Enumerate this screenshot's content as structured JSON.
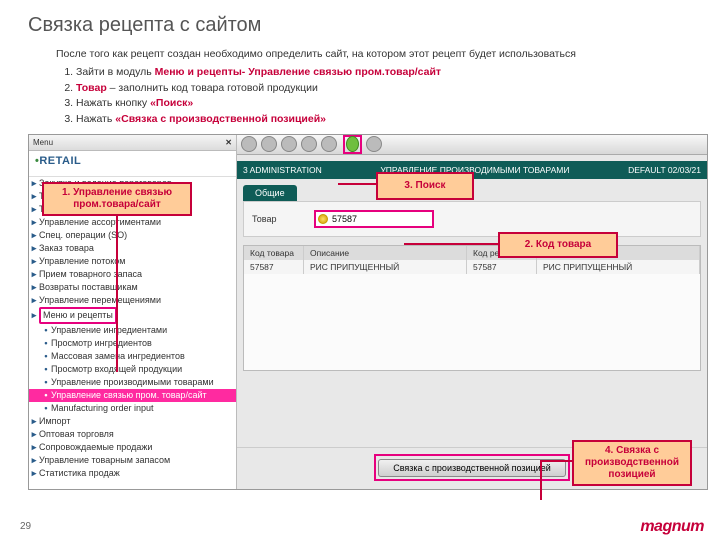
{
  "slide": {
    "title": "Связка рецепта с сайтом",
    "intro": "После того как рецепт создан необходимо определить сайт, на котором этот рецепт будет использоваться",
    "steps": [
      {
        "pre": "Зайти в модуль ",
        "bold": "Меню и рецепты- Управление связью пром.товар/сайт",
        "post": ""
      },
      {
        "pre": "",
        "bold": "Товар",
        "post": " – заполнить код товара готовой продукции"
      },
      {
        "pre": "Нажать кнопку ",
        "bold": "«Поиск»",
        "post": ""
      },
      {
        "pre": "Нажать ",
        "bold": "«Связка с производственной позицией»",
        "post": ""
      }
    ],
    "page_num": "29",
    "brand": "magnum"
  },
  "app": {
    "menu_label": "Menu",
    "retail_logo": "RETAIL",
    "tree": [
      {
        "label": "Закупка и ведение переговоров",
        "lvl": 1
      },
      {
        "label": "Товары",
        "lvl": 1
      },
      {
        "label": "Товарные ценники",
        "lvl": 1
      },
      {
        "label": "Управление ассортиментами",
        "lvl": 1
      },
      {
        "label": "Спец. операции (SO)",
        "lvl": 1
      },
      {
        "label": "Заказ товара",
        "lvl": 1
      },
      {
        "label": "Управление потоком",
        "lvl": 1
      },
      {
        "label": "Прием товарного запаса",
        "lvl": 1
      },
      {
        "label": "Возвраты поставщикам",
        "lvl": 1
      },
      {
        "label": "Управление перемещениями",
        "lvl": 1
      },
      {
        "label": "Меню и рецепты",
        "lvl": 1,
        "hl_box": true
      },
      {
        "label": "Управление ингредиентами",
        "lvl": 2
      },
      {
        "label": "Просмотр ингредиентов",
        "lvl": 2
      },
      {
        "label": "Массовая замена ингредиентов",
        "lvl": 2
      },
      {
        "label": "Просмотр входящей продукции",
        "lvl": 2
      },
      {
        "label": "Управление производимыми товарами",
        "lvl": 2
      },
      {
        "label": "Управление связью пром. товар/сайт",
        "lvl": 2,
        "hl_row": true
      },
      {
        "label": "Manufacturing order input",
        "lvl": 2
      },
      {
        "label": "Импорт",
        "lvl": 1
      },
      {
        "label": "Оптовая торговля",
        "lvl": 1
      },
      {
        "label": "Сопровождаемые продажи",
        "lvl": 1
      },
      {
        "label": "Управление товарным запасом",
        "lvl": 1
      },
      {
        "label": "Статистика продаж",
        "lvl": 1
      }
    ],
    "bar": {
      "left": "3 ADMINISTRATION",
      "mid": "УПРАВЛЕНИЕ ПРОИЗВОДИМЫМИ ТОВАРАМИ",
      "right": "DEFAULT   02/03/21"
    },
    "tab": "Общие",
    "form": {
      "label": "Товар",
      "value": "57587"
    },
    "grid": {
      "cols": [
        "Код товара",
        "Описание",
        "Код рецепта",
        "Рецептура"
      ],
      "row": [
        "57587",
        "РИС ПРИПУЩЕННЫЙ",
        "57587",
        "РИС ПРИПУЩЕННЫЙ"
      ]
    },
    "bottom_btn": "Связка с производственной позицией"
  },
  "callouts": {
    "c1": "1. Управление связью пром.товара/сайт",
    "c2": "2. Код товара",
    "c3": "3. Поиск",
    "c4": "4. Связка с производственной позицией"
  },
  "colors": {
    "accent": "#c6003a",
    "magenta": "#e6007e",
    "teal": "#0f5c57",
    "peach": "#ffcc99"
  }
}
